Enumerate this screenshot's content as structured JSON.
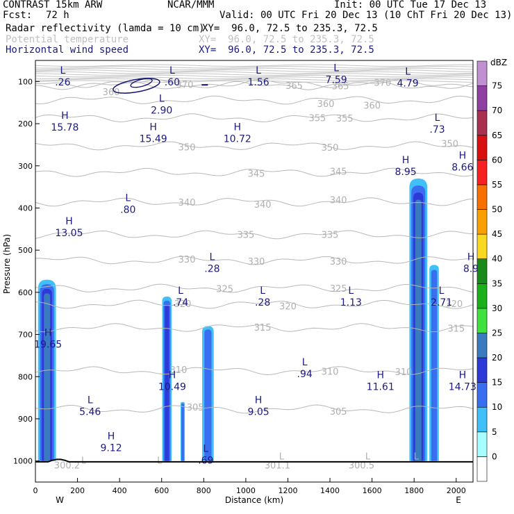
{
  "header": {
    "model": "CONTRAST 15km ARW",
    "org": "NCAR/MMM",
    "init": "Init: 00 UTC Tue 17 Dec 13",
    "fcst_label": "Fcst:",
    "fcst_value": "72 h",
    "valid": "Valid: 00 UTC Fri 20 Dec 13 (10 ChT Fri 20 Dec 13)",
    "fields": [
      {
        "name": "Radar reflectivity (lamda = 10 cm)",
        "xy": "XY=  96.0, 72.5 to 235.3, 72.5",
        "color": "#000000"
      },
      {
        "name": "Potential temperature",
        "xy": "XY=  96.0, 72.5 to 235.3, 72.5",
        "color": "#c0c0c0"
      },
      {
        "name": "Horizontal wind speed",
        "xy": "XY=  96.0, 72.5 to 235.3, 72.5",
        "color": "#1a1a80"
      }
    ]
  },
  "chart_data": {
    "type": "cross-section",
    "xlabel": "Distance (km)",
    "ylabel": "Pressure (hPa)",
    "xlim": [
      0,
      2080
    ],
    "ylim": [
      1050,
      50
    ],
    "x_ticks": [
      0,
      200,
      400,
      600,
      800,
      1000,
      1200,
      1400,
      1600,
      1800,
      2000
    ],
    "y_ticks": [
      100,
      200,
      300,
      400,
      500,
      600,
      700,
      800,
      900,
      1000
    ],
    "x_end_labels": {
      "left": "W",
      "right": "E"
    },
    "colorbar": {
      "unit": "dBZ",
      "levels": [
        "0",
        "5",
        "10",
        "15",
        "20",
        "25",
        "30",
        "35",
        "40",
        "45",
        "50",
        "55",
        "60",
        "65",
        "70",
        "75"
      ],
      "colors": [
        "#ffffff",
        "#a8ffff",
        "#40c0f8",
        "#3a6ef0",
        "#2e3ad8",
        "#3a7abf",
        "#3fe040",
        "#1ab01a",
        "#1a8a1a",
        "#f8d820",
        "#f8a000",
        "#f87000",
        "#f82020",
        "#d81010",
        "#a83050",
        "#9040a0",
        "#c090d0"
      ]
    },
    "theta_contours": [
      {
        "value": 300,
        "labels": [
          {
            "x": 150,
            "p": 1010,
            "text": "300.2"
          },
          {
            "x": 1150,
            "p": 1010,
            "text": "301.1"
          },
          {
            "x": 1550,
            "p": 1010,
            "text": "300.5"
          }
        ]
      },
      {
        "value": 305,
        "labels": [
          {
            "x": 760,
            "p": 872,
            "text": "305"
          },
          {
            "x": 1440,
            "p": 882,
            "text": "305"
          }
        ]
      },
      {
        "value": 310,
        "labels": [
          {
            "x": 680,
            "p": 783,
            "text": "310"
          },
          {
            "x": 1400,
            "p": 787,
            "text": "310"
          },
          {
            "x": 1750,
            "p": 788,
            "text": "310"
          }
        ]
      },
      {
        "value": 315,
        "labels": [
          {
            "x": 1080,
            "p": 683,
            "text": "315"
          },
          {
            "x": 2000,
            "p": 685,
            "text": "315"
          }
        ]
      },
      {
        "value": 320,
        "labels": [
          {
            "x": 700,
            "p": 627,
            "text": "320"
          },
          {
            "x": 1200,
            "p": 632,
            "text": "320"
          },
          {
            "x": 1990,
            "p": 627,
            "text": "320"
          }
        ]
      },
      {
        "value": 325,
        "labels": [
          {
            "x": 900,
            "p": 591,
            "text": "325"
          },
          {
            "x": 1440,
            "p": 590,
            "text": "325"
          }
        ]
      },
      {
        "value": 330,
        "labels": [
          {
            "x": 720,
            "p": 521,
            "text": "330"
          },
          {
            "x": 1050,
            "p": 526,
            "text": "330"
          },
          {
            "x": 1440,
            "p": 526,
            "text": "330"
          }
        ]
      },
      {
        "value": 335,
        "labels": [
          {
            "x": 1000,
            "p": 463,
            "text": "335"
          },
          {
            "x": 1400,
            "p": 463,
            "text": "335"
          }
        ]
      },
      {
        "value": 340,
        "labels": [
          {
            "x": 720,
            "p": 386,
            "text": "340"
          },
          {
            "x": 1080,
            "p": 391,
            "text": "340"
          },
          {
            "x": 1440,
            "p": 380,
            "text": "340"
          }
        ]
      },
      {
        "value": 345,
        "labels": [
          {
            "x": 1050,
            "p": 318,
            "text": "345"
          },
          {
            "x": 1440,
            "p": 313,
            "text": "345"
          }
        ]
      },
      {
        "value": 350,
        "labels": [
          {
            "x": 720,
            "p": 255,
            "text": "350"
          },
          {
            "x": 1400,
            "p": 256,
            "text": "350"
          },
          {
            "x": 1970,
            "p": 247,
            "text": "350"
          }
        ]
      },
      {
        "value": 355,
        "labels": [
          {
            "x": 1340,
            "p": 186,
            "text": "355"
          },
          {
            "x": 1470,
            "p": 187,
            "text": "355"
          }
        ]
      },
      {
        "value": 360,
        "labels": [
          {
            "x": 360,
            "p": 124,
            "text": "360"
          },
          {
            "x": 1380,
            "p": 152,
            "text": "360"
          },
          {
            "x": 1600,
            "p": 156,
            "text": "360"
          }
        ]
      },
      {
        "value": 365,
        "labels": [
          {
            "x": 1230,
            "p": 109,
            "text": "365"
          },
          {
            "x": 1450,
            "p": 110,
            "text": "365"
          }
        ]
      },
      {
        "value": 370,
        "labels": [
          {
            "x": 710,
            "p": 107,
            "text": "370"
          },
          {
            "x": 1650,
            "p": 102,
            "text": "370"
          }
        ]
      }
    ],
    "wind_extrema": [
      {
        "type": "L",
        "value": ".26",
        "x": 130,
        "p": 88
      },
      {
        "type": "L",
        "value": ".60",
        "x": 650,
        "p": 88
      },
      {
        "type": "L",
        "value": "1.56",
        "x": 1060,
        "p": 88
      },
      {
        "type": "L",
        "value": "7.59",
        "x": 1430,
        "p": 82
      },
      {
        "type": "L",
        "value": "4.79",
        "x": 1770,
        "p": 90
      },
      {
        "type": "L",
        "value": "2.90",
        "x": 600,
        "p": 155
      },
      {
        "type": "H",
        "value": "15.78",
        "x": 140,
        "p": 195
      },
      {
        "type": "H",
        "value": "15.49",
        "x": 560,
        "p": 222
      },
      {
        "type": "H",
        "value": "10.72",
        "x": 960,
        "p": 222
      },
      {
        "type": "L",
        "value": ".73",
        "x": 1910,
        "p": 200
      },
      {
        "type": "H",
        "value": "8.95",
        "x": 1760,
        "p": 300
      },
      {
        "type": "H",
        "value": "8.66",
        "x": 2030,
        "p": 290
      },
      {
        "type": "L",
        "value": ".80",
        "x": 440,
        "p": 390
      },
      {
        "type": "H",
        "value": "13.05",
        "x": 160,
        "p": 445
      },
      {
        "type": "L",
        "value": ".28",
        "x": 840,
        "p": 530
      },
      {
        "type": "H",
        "value": "8.9",
        "x": 2070,
        "p": 530
      },
      {
        "type": "L",
        "value": ".74",
        "x": 690,
        "p": 610
      },
      {
        "type": "L",
        "value": ".28",
        "x": 1080,
        "p": 610
      },
      {
        "type": "L",
        "value": "1.13",
        "x": 1500,
        "p": 610
      },
      {
        "type": "L",
        "value": "2.71",
        "x": 1930,
        "p": 610
      },
      {
        "type": "H",
        "value": "19.65",
        "x": 60,
        "p": 710
      },
      {
        "type": "L",
        "value": ".94",
        "x": 1280,
        "p": 780
      },
      {
        "type": "H",
        "value": "10.49",
        "x": 650,
        "p": 810
      },
      {
        "type": "H",
        "value": "11.61",
        "x": 1640,
        "p": 810
      },
      {
        "type": "H",
        "value": "14.73",
        "x": 2030,
        "p": 810
      },
      {
        "type": "L",
        "value": "5.46",
        "x": 260,
        "p": 870
      },
      {
        "type": "H",
        "value": "9.05",
        "x": 1060,
        "p": 870
      },
      {
        "type": "H",
        "value": "9.12",
        "x": 360,
        "p": 955
      },
      {
        "type": "L",
        "value": ".69",
        "x": 810,
        "p": 985
      }
    ],
    "theta_surface_lows": [
      {
        "x": 230,
        "p": 1000
      },
      {
        "x": 1170,
        "p": 990
      },
      {
        "x": 1580,
        "p": 990
      },
      {
        "x": 1810,
        "p": 990
      },
      {
        "x": 590,
        "p": 1000
      }
    ],
    "reflectivity_cells": [
      {
        "x": 55,
        "width": 85,
        "top": 570,
        "bottom": 1000,
        "core_dbz": 20
      },
      {
        "x": 625,
        "width": 45,
        "top": 610,
        "bottom": 1000,
        "core_dbz": 15
      },
      {
        "x": 700,
        "width": 20,
        "top": 860,
        "bottom": 1000,
        "core_dbz": 10
      },
      {
        "x": 820,
        "width": 55,
        "top": 680,
        "bottom": 1000,
        "core_dbz": 10
      },
      {
        "x": 1820,
        "width": 85,
        "top": 330,
        "bottom": 1000,
        "core_dbz": 20
      },
      {
        "x": 1895,
        "width": 45,
        "top": 535,
        "bottom": 1000,
        "core_dbz": 10
      }
    ],
    "jet_core": {
      "x": 480,
      "p": 110,
      "label": "upper-level wind contour"
    }
  }
}
